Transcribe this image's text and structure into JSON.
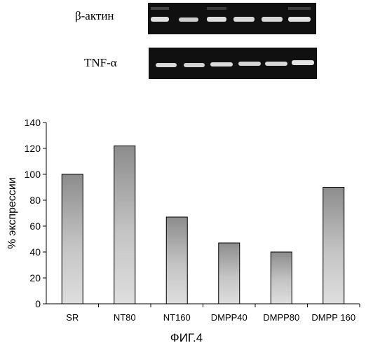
{
  "gels": {
    "actin_label": "β-актин",
    "tnf_label": "TNF-α"
  },
  "caption": "ФИГ.4",
  "chart_data": {
    "type": "bar",
    "categories": [
      "SR",
      "NT80",
      "NT160",
      "DMPP40",
      "DMPP80",
      "DMPP 160"
    ],
    "values": [
      100,
      122,
      67,
      47,
      40,
      90
    ],
    "title": "",
    "xlabel": "",
    "ylabel": "% экспрессии",
    "ylim": [
      0,
      140
    ],
    "yticks": [
      0,
      20,
      40,
      60,
      80,
      100,
      120,
      140
    ],
    "grid": false,
    "legend": "none",
    "bar_color": "#8c8c8c"
  }
}
